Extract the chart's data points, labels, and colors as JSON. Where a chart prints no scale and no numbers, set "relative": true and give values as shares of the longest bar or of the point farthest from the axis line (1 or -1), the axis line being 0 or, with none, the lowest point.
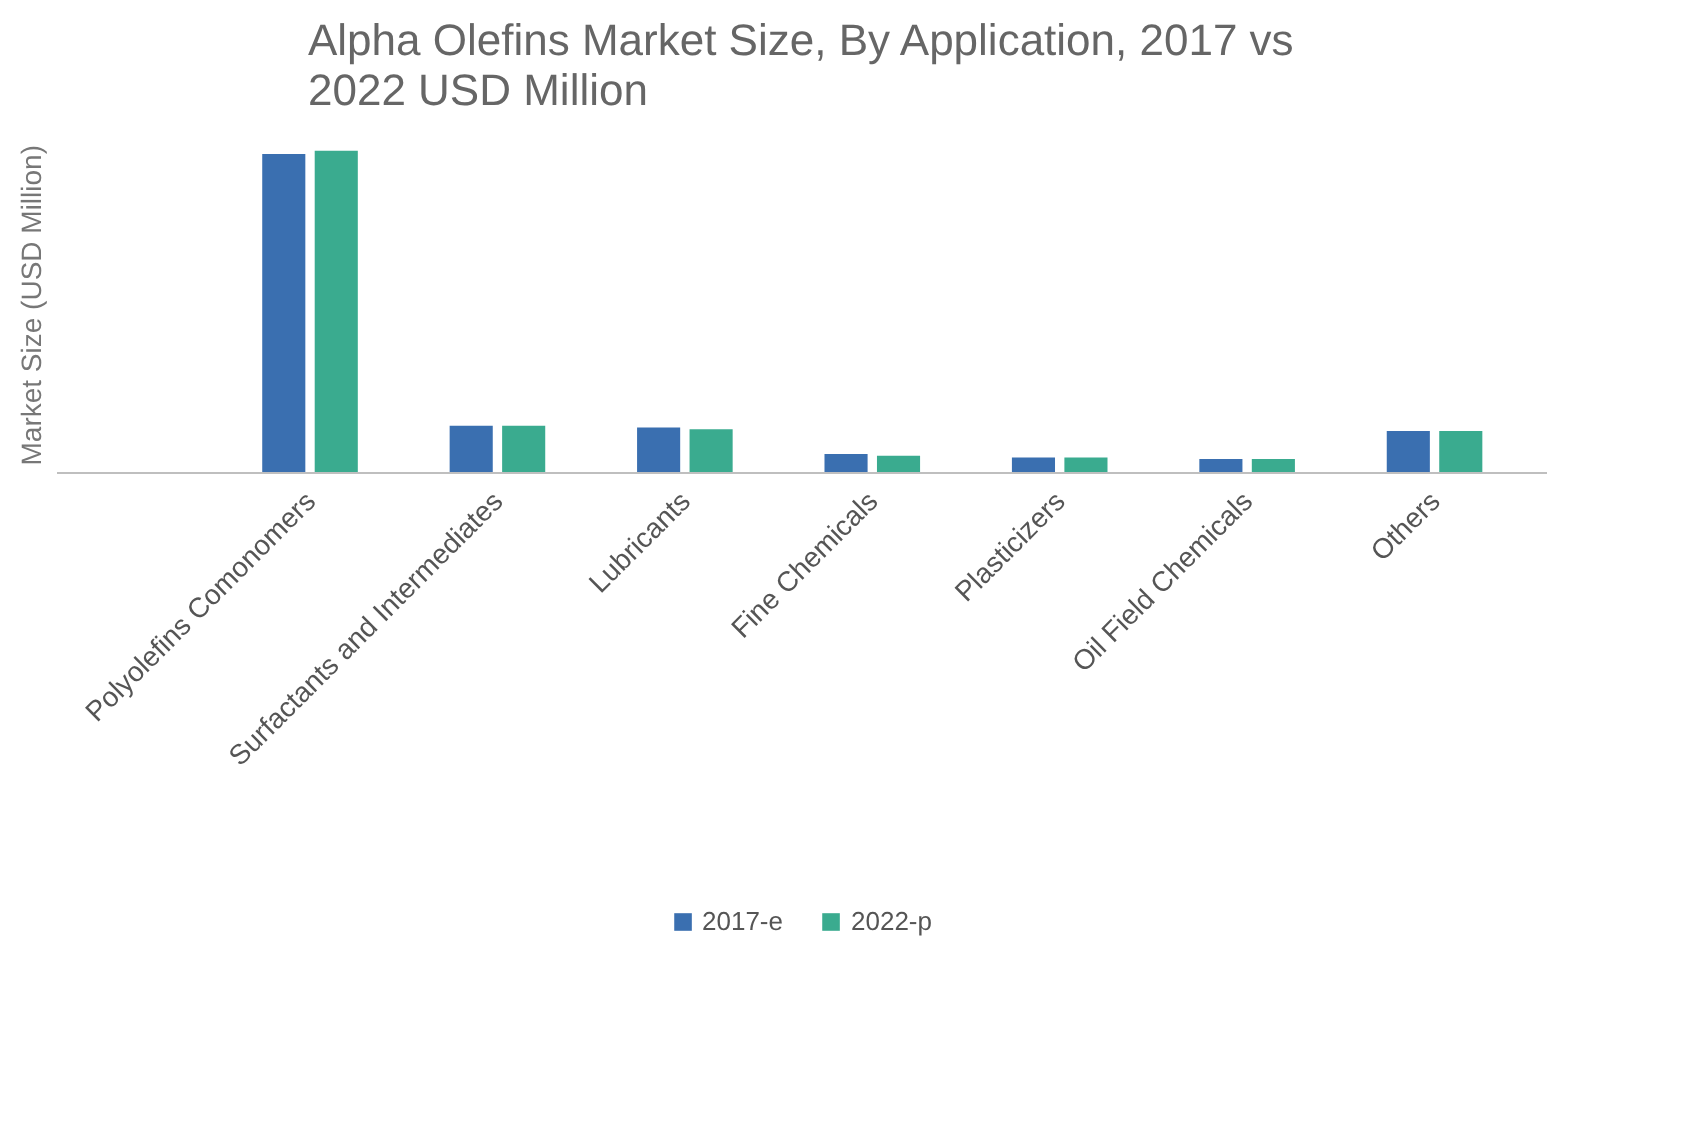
{
  "chart_data": {
    "type": "bar",
    "title": "Alpha Olefins Market Size, By Application, 2017 vs 2022 USD Million",
    "ylabel": "Market Size (USD Million)",
    "relative": true,
    "categories": [
      "Polyolefins Comonomers",
      "Surfactants and Intermediates",
      "Lubricants",
      "Fine Chemicals",
      "Plasticizers",
      "Oil Field Chemicals",
      "Others"
    ],
    "series": [
      {
        "name": "2017-e",
        "color": "#3a6fb0",
        "values": [
          0.99,
          0.149,
          0.144,
          0.062,
          0.051,
          0.046,
          0.133
        ]
      },
      {
        "name": "2022-p",
        "color": "#3aab8f",
        "values": [
          1.0,
          0.149,
          0.138,
          0.056,
          0.051,
          0.046,
          0.133
        ]
      }
    ],
    "legend": "bottom"
  }
}
